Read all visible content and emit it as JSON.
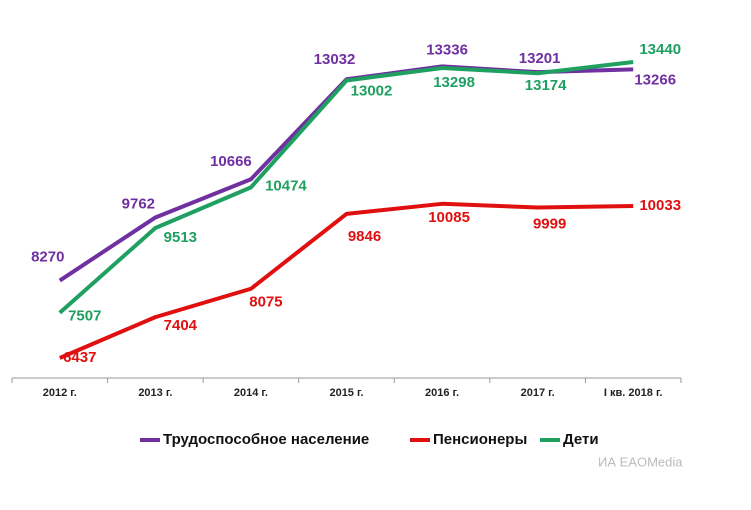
{
  "chart_data": {
    "type": "line",
    "categories": [
      "2012 г.",
      "2013 г.",
      "2014 г.",
      "2015 г.",
      "2016 г.",
      "2017 г.",
      "I кв. 2018 г."
    ],
    "series": [
      {
        "name": "Трудоспособное население",
        "color": "#7030a0",
        "values": [
          8270,
          9762,
          10666,
          13032,
          13336,
          13201,
          13266
        ]
      },
      {
        "name": "Пенсионеры",
        "color": "#e01010",
        "values": [
          6437,
          7404,
          8075,
          9846,
          10085,
          9999,
          10033
        ]
      },
      {
        "name": "Дети",
        "color": "#1fa060",
        "values": [
          7507,
          9513,
          10474,
          13002,
          13298,
          13174,
          13440
        ]
      }
    ],
    "legend": "bottom",
    "watermark": "ИА EAOMedia"
  }
}
